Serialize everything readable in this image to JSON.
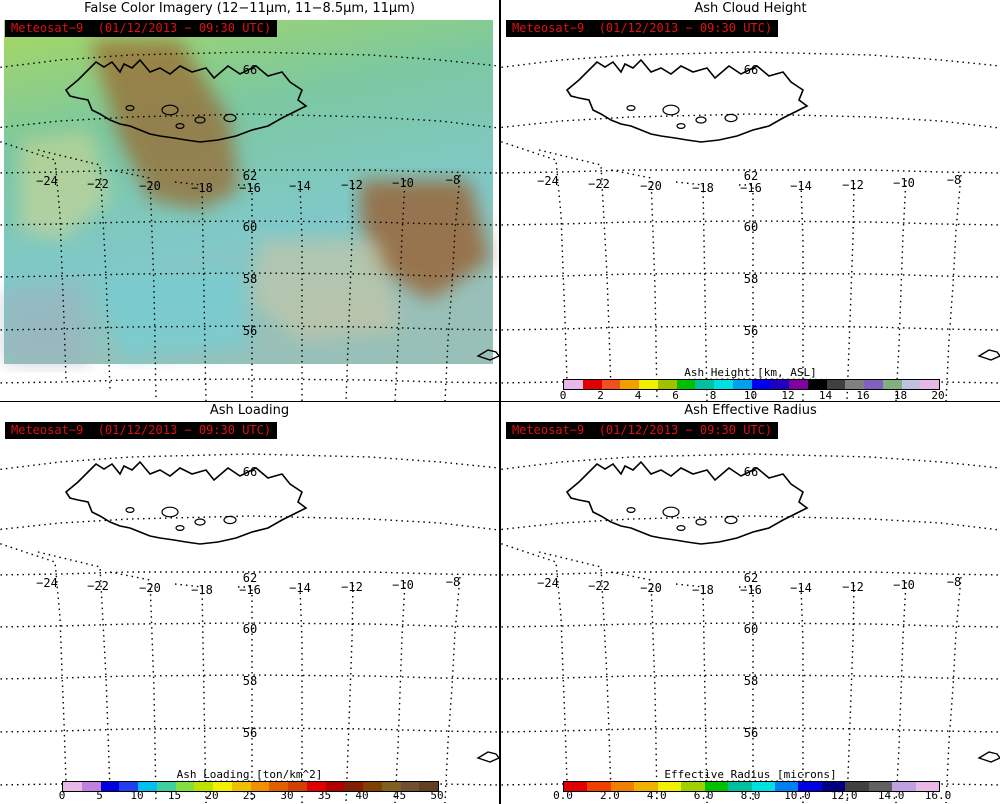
{
  "panels": [
    {
      "id": "false-color",
      "title": "False Color Imagery (12−11μm, 11−8.5μm, 11μm)",
      "satellite": "Meteosat−9  (01/12/2013 − 09:30 UTC)",
      "has_imagery": true,
      "colorbar": null
    },
    {
      "id": "ash-height",
      "title": "Ash Cloud Height",
      "satellite": "Meteosat−9  (01/12/2013 − 09:30 UTC)",
      "has_imagery": false,
      "colorbar": {
        "label": "Ash Height [km, ASL]",
        "ticks": [
          "0",
          "2",
          "4",
          "6",
          "8",
          "10",
          "12",
          "14",
          "16",
          "18",
          "20"
        ],
        "colors": [
          "#e8b8e8",
          "#e00000",
          "#f05020",
          "#f0a000",
          "#f0f000",
          "#a0c000",
          "#00c000",
          "#00c0a0",
          "#00e0e0",
          "#00a0f0",
          "#0000f0",
          "#2000c0",
          "#8000a0",
          "#000000",
          "#404040",
          "#808080",
          "#8060c0",
          "#80b080",
          "#c0c0e0",
          "#e8b8e8"
        ]
      }
    },
    {
      "id": "ash-loading",
      "title": "Ash Loading",
      "satellite": "Meteosat−9  (01/12/2013 − 09:30 UTC)",
      "has_imagery": false,
      "colorbar": {
        "label": "Ash Loading [ton/km^2]",
        "ticks": [
          "0",
          "5",
          "10",
          "15",
          "20",
          "25",
          "30",
          "35",
          "40",
          "45",
          "50"
        ],
        "colors": [
          "#e8b8e8",
          "#c080e0",
          "#0000e0",
          "#2040f0",
          "#00c0f0",
          "#40d0a0",
          "#80e040",
          "#c0e000",
          "#f0f000",
          "#f0c000",
          "#f09000",
          "#e06000",
          "#d04000",
          "#e00000",
          "#b00000",
          "#802000",
          "#804000",
          "#806020",
          "#705030",
          "#604020"
        ]
      }
    },
    {
      "id": "ash-radius",
      "title": "Ash Effective Radius",
      "satellite": "Meteosat−9  (01/12/2013 − 09:30 UTC)",
      "has_imagery": false,
      "colorbar": {
        "label": "Effective Radius [microns]",
        "ticks": [
          "0.0",
          "2.0",
          "4.0",
          "6.0",
          "8.0",
          "10.0",
          "12.0",
          "14.0",
          "16.0"
        ],
        "colors": [
          "#e00000",
          "#f04000",
          "#f08000",
          "#f0b000",
          "#f0f000",
          "#a0d000",
          "#00c000",
          "#00c0a0",
          "#00e0e0",
          "#0080f0",
          "#0000e0",
          "#000080",
          "#404040",
          "#606060",
          "#c0a0e0",
          "#e8b8e8"
        ]
      }
    }
  ],
  "map": {
    "lon_labels": [
      "−24",
      "−22",
      "−20",
      "−18",
      "−16",
      "−14",
      "−12",
      "−10",
      "−8"
    ],
    "lat_labels": [
      "66",
      "62",
      "60",
      "58",
      "56"
    ],
    "land_color": "#000000",
    "grid_color": "#000000"
  }
}
